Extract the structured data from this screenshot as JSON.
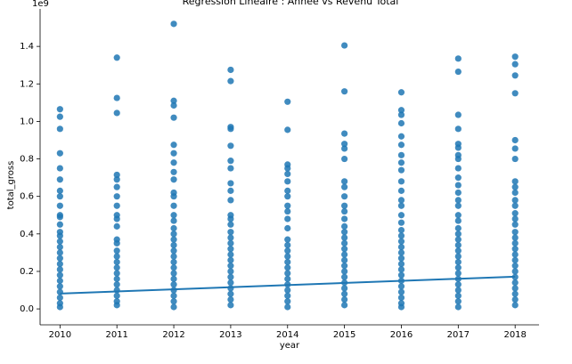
{
  "chart_data": {
    "type": "scatter",
    "title": "Régression Linéaire : Année vs Revenu Total",
    "x_label": "year",
    "y_label": "total_gross",
    "offset_label": "1e9",
    "color": "#1f77b4",
    "grid": false,
    "xlim": [
      2009.65,
      2018.42
    ],
    "ylim": [
      -0.085,
      1.6
    ],
    "xticks": [
      2010,
      2011,
      2012,
      2013,
      2014,
      2015,
      2016,
      2017,
      2018
    ],
    "yticks": [
      {
        "value": 0,
        "label": "0.0"
      },
      0.2,
      0.4,
      0.6,
      0.8,
      {
        "value": 1,
        "label": "1.0"
      },
      1.2,
      1.4
    ],
    "groups": [
      {
        "x": 2010,
        "values": [
          1.065,
          1.025,
          0.96,
          0.83,
          0.75,
          0.69,
          0.63,
          0.6,
          0.55,
          0.5,
          0.49,
          0.45,
          0.41,
          0.39,
          0.36,
          0.33,
          0.3,
          0.27,
          0.24,
          0.21,
          0.18,
          0.15,
          0.12,
          0.09,
          0.06,
          0.03,
          0.01
        ]
      },
      {
        "x": 2011,
        "values": [
          1.34,
          1.125,
          1.045,
          0.715,
          0.69,
          0.65,
          0.6,
          0.55,
          0.5,
          0.48,
          0.44,
          0.37,
          0.35,
          0.31,
          0.28,
          0.25,
          0.22,
          0.19,
          0.16,
          0.13,
          0.1,
          0.07,
          0.04,
          0.02
        ]
      },
      {
        "x": 2012,
        "values": [
          1.52,
          1.11,
          1.085,
          1.02,
          0.875,
          0.83,
          0.78,
          0.73,
          0.69,
          0.62,
          0.6,
          0.55,
          0.5,
          0.47,
          0.43,
          0.4,
          0.37,
          0.34,
          0.31,
          0.28,
          0.25,
          0.22,
          0.19,
          0.16,
          0.13,
          0.1,
          0.07,
          0.04,
          0.01
        ]
      },
      {
        "x": 2013,
        "values": [
          1.275,
          1.215,
          0.97,
          0.96,
          0.87,
          0.79,
          0.75,
          0.67,
          0.63,
          0.58,
          0.5,
          0.48,
          0.45,
          0.41,
          0.38,
          0.35,
          0.32,
          0.29,
          0.26,
          0.23,
          0.2,
          0.17,
          0.14,
          0.11,
          0.08,
          0.05,
          0.02
        ]
      },
      {
        "x": 2014,
        "values": [
          1.105,
          0.955,
          0.77,
          0.75,
          0.72,
          0.68,
          0.63,
          0.6,
          0.55,
          0.52,
          0.48,
          0.43,
          0.37,
          0.34,
          0.31,
          0.28,
          0.25,
          0.22,
          0.19,
          0.16,
          0.13,
          0.1,
          0.07,
          0.04,
          0.01
        ]
      },
      {
        "x": 2015,
        "values": [
          1.405,
          1.16,
          0.935,
          0.88,
          0.855,
          0.8,
          0.68,
          0.65,
          0.6,
          0.55,
          0.52,
          0.48,
          0.44,
          0.41,
          0.38,
          0.35,
          0.32,
          0.29,
          0.26,
          0.23,
          0.2,
          0.17,
          0.14,
          0.11,
          0.08,
          0.05,
          0.02
        ]
      },
      {
        "x": 2016,
        "values": [
          1.155,
          1.06,
          1.035,
          0.99,
          0.92,
          0.875,
          0.82,
          0.78,
          0.74,
          0.68,
          0.63,
          0.58,
          0.55,
          0.5,
          0.46,
          0.42,
          0.39,
          0.36,
          0.33,
          0.3,
          0.27,
          0.24,
          0.21,
          0.18,
          0.15,
          0.12,
          0.09,
          0.06,
          0.03,
          0.01
        ]
      },
      {
        "x": 2017,
        "values": [
          1.335,
          1.265,
          1.035,
          0.96,
          0.88,
          0.86,
          0.82,
          0.8,
          0.75,
          0.7,
          0.66,
          0.62,
          0.58,
          0.55,
          0.5,
          0.47,
          0.43,
          0.4,
          0.37,
          0.34,
          0.31,
          0.28,
          0.25,
          0.22,
          0.19,
          0.16,
          0.13,
          0.1,
          0.07,
          0.04,
          0.01
        ]
      },
      {
        "x": 2018,
        "values": [
          1.345,
          1.305,
          1.245,
          1.15,
          0.9,
          0.855,
          0.8,
          0.68,
          0.65,
          0.62,
          0.58,
          0.55,
          0.51,
          0.48,
          0.45,
          0.41,
          0.38,
          0.35,
          0.32,
          0.29,
          0.26,
          0.23,
          0.2,
          0.17,
          0.14,
          0.11,
          0.08,
          0.05,
          0.02
        ]
      }
    ],
    "fit": {
      "x": [
        2010,
        2018
      ],
      "values": [
        0.082,
        0.172
      ]
    }
  }
}
